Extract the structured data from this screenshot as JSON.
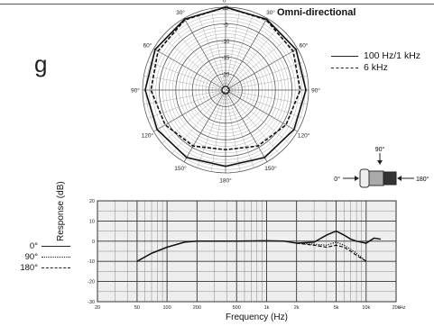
{
  "title": "Omni-directional",
  "left_cut_text": "g",
  "polar": {
    "angle_labels": [
      "0°",
      "30°",
      "60°",
      "90°",
      "120°",
      "150°",
      "180°",
      "150°",
      "120°",
      "90°",
      "60°",
      "30°"
    ],
    "ring_labels": [
      "-5",
      "-10",
      "-15",
      "-20",
      "-25"
    ],
    "center_label": "dB",
    "legend": [
      {
        "label": "100 Hz/1 kHz",
        "style": "solid"
      },
      {
        "label": "6 kHz",
        "style": "dashed"
      }
    ]
  },
  "mic_diagram": {
    "labels": {
      "top": "90°",
      "left": "0°",
      "right": "180°"
    }
  },
  "chart_data": [
    {
      "type": "polar",
      "title": "Omni-directional",
      "angle_units": "degrees",
      "r_units": "dB",
      "rlim": [
        -25,
        0
      ],
      "series": [
        {
          "name": "100 Hz/1 kHz",
          "style": "solid",
          "angles": [
            0,
            30,
            60,
            90,
            120,
            150,
            180,
            210,
            240,
            270,
            300,
            330
          ],
          "values": [
            0,
            -0.3,
            -0.5,
            -0.8,
            -1.2,
            -1.5,
            -2,
            -1.5,
            -1.2,
            -0.8,
            -0.5,
            -0.3
          ]
        },
        {
          "name": "6 kHz",
          "style": "dashed",
          "angles": [
            0,
            30,
            60,
            90,
            120,
            150,
            180,
            210,
            240,
            270,
            300,
            330
          ],
          "values": [
            0,
            -0.5,
            -1.5,
            -2.5,
            -4,
            -5.5,
            -7,
            -5.5,
            -4,
            -2.5,
            -1.5,
            -0.5
          ]
        }
      ]
    },
    {
      "type": "line",
      "xlabel": "Frequency (Hz)",
      "ylabel": "Response (dB)",
      "x_scale": "log",
      "xlim": [
        20,
        20000
      ],
      "ylim": [
        -30,
        20
      ],
      "x_ticks": [
        20,
        50,
        100,
        200,
        500,
        1000,
        2000,
        5000,
        10000,
        20000
      ],
      "x_tick_labels": [
        "20",
        "50",
        "100",
        "200",
        "500",
        "1k",
        "2k",
        "5k",
        "10k",
        "20k"
      ],
      "x_unit_label": "Hz",
      "y_ticks": [
        20,
        10,
        0,
        -10,
        -20,
        -30
      ],
      "grid": true,
      "series": [
        {
          "name": "0°",
          "style": "solid",
          "x": [
            50,
            70,
            100,
            150,
            200,
            500,
            1000,
            1500,
            2000,
            3000,
            4000,
            5000,
            6000,
            7000,
            8000,
            10000,
            12000,
            14000
          ],
          "y": [
            -10,
            -6,
            -3,
            -0.5,
            0,
            0,
            0.2,
            0,
            -1,
            -0.5,
            3,
            5,
            3,
            1,
            0,
            -1,
            1.5,
            1
          ]
        },
        {
          "name": "90°",
          "style": "dotted",
          "x": [
            2000,
            3000,
            4000,
            5000,
            6000,
            7000,
            8000,
            10000
          ],
          "y": [
            -1,
            -1.5,
            -2,
            -0.5,
            -2,
            -4,
            -6,
            -10
          ]
        },
        {
          "name": "180°",
          "style": "dashed",
          "x": [
            2000,
            3000,
            4000,
            5000,
            6000,
            7000,
            8000,
            10000
          ],
          "y": [
            -1,
            -2,
            -3,
            -2,
            -3,
            -5,
            -7,
            -10
          ]
        }
      ],
      "legend": [
        "0°",
        "90°",
        "180°"
      ]
    }
  ]
}
